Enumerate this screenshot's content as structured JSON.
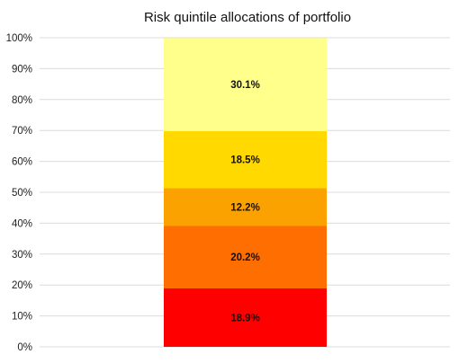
{
  "chart_data": {
    "type": "bar",
    "stacked": true,
    "title": "Risk quintile allocations of portfolio",
    "xlabel": "",
    "ylabel": "",
    "ylim": [
      0,
      100
    ],
    "y_ticks": [
      "0%",
      "10%",
      "20%",
      "30%",
      "40%",
      "50%",
      "60%",
      "70%",
      "80%",
      "90%",
      "100%"
    ],
    "grid": true,
    "legend": "none",
    "segments": [
      {
        "value": 18.9,
        "label": "18.9%",
        "color": "#ff0000"
      },
      {
        "value": 20.2,
        "label": "20.2%",
        "color": "#ff6e00"
      },
      {
        "value": 12.2,
        "label": "12.2%",
        "color": "#fba100"
      },
      {
        "value": 18.5,
        "label": "18.5%",
        "color": "#ffd900"
      },
      {
        "value": 30.1,
        "label": "30.1%",
        "color": "#ffff8c"
      }
    ]
  }
}
